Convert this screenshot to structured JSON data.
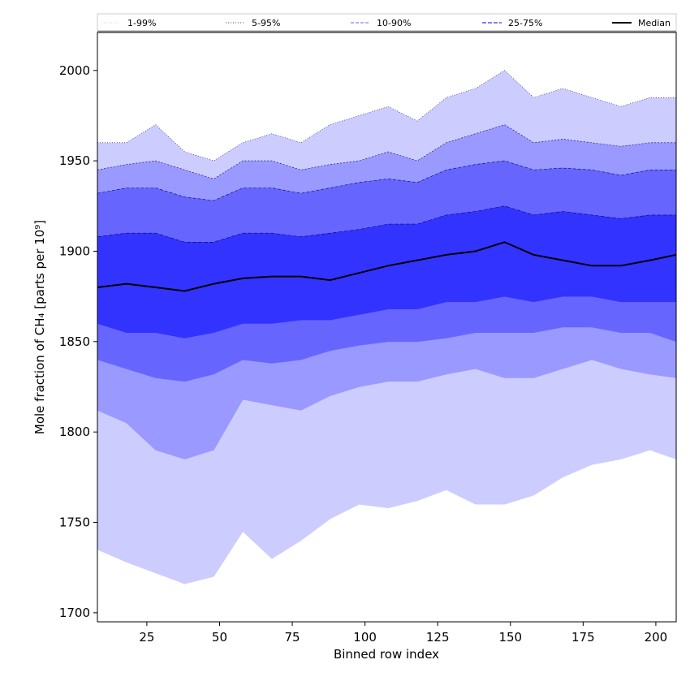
{
  "chart_data": {
    "type": "area",
    "xlabel": "Binned row index",
    "ylabel": "Mole fraction of CH₄ [parts per 10⁹]",
    "xlim": [
      8,
      207
    ],
    "ylim": [
      1695,
      2021
    ],
    "xticks": [
      25,
      50,
      75,
      100,
      125,
      150,
      175,
      200
    ],
    "yticks": [
      1700,
      1750,
      1800,
      1850,
      1900,
      1950,
      2000
    ],
    "legend_position": "top (above plot, horizontal)",
    "x": [
      8,
      18,
      28,
      38,
      48,
      58,
      68,
      78,
      88,
      98,
      108,
      118,
      128,
      138,
      148,
      158,
      168,
      178,
      188,
      198,
      207
    ],
    "series": [
      {
        "name": "1-99%",
        "color": "#ccccff",
        "lower": [
          1735,
          1728,
          1722,
          1716,
          1720,
          1745,
          1730,
          1740,
          1752,
          1760,
          1758,
          1762,
          1768,
          1760,
          1760,
          1765,
          1775,
          1782,
          1785,
          1790,
          1785
        ],
        "upper": [
          1960,
          1960,
          1970,
          1955,
          1950,
          1960,
          1965,
          1960,
          1970,
          1975,
          1980,
          1972,
          1985,
          1990,
          2000,
          1985,
          1990,
          1985,
          1980,
          1985,
          1985
        ]
      },
      {
        "name": "5-95%",
        "color": "#9999ff",
        "lower": [
          1812,
          1805,
          1790,
          1785,
          1790,
          1818,
          1815,
          1812,
          1820,
          1825,
          1828,
          1828,
          1832,
          1835,
          1830,
          1830,
          1835,
          1840,
          1835,
          1832,
          1830
        ],
        "upper": [
          1945,
          1948,
          1950,
          1945,
          1940,
          1950,
          1950,
          1945,
          1948,
          1950,
          1955,
          1950,
          1960,
          1965,
          1970,
          1960,
          1962,
          1960,
          1958,
          1960,
          1960
        ]
      },
      {
        "name": "10-90%",
        "color": "#6666ff",
        "lower": [
          1840,
          1835,
          1830,
          1828,
          1832,
          1840,
          1838,
          1840,
          1845,
          1848,
          1850,
          1850,
          1852,
          1855,
          1855,
          1855,
          1858,
          1858,
          1855,
          1855,
          1850
        ],
        "upper": [
          1932,
          1935,
          1935,
          1930,
          1928,
          1935,
          1935,
          1932,
          1935,
          1938,
          1940,
          1938,
          1945,
          1948,
          1950,
          1945,
          1946,
          1945,
          1942,
          1945,
          1945
        ]
      },
      {
        "name": "25-75%",
        "color": "#3333ff",
        "lower": [
          1860,
          1855,
          1855,
          1852,
          1855,
          1860,
          1860,
          1862,
          1862,
          1865,
          1868,
          1868,
          1872,
          1872,
          1875,
          1872,
          1875,
          1875,
          1872,
          1872,
          1872
        ],
        "upper": [
          1908,
          1910,
          1910,
          1905,
          1905,
          1910,
          1910,
          1908,
          1910,
          1912,
          1915,
          1915,
          1920,
          1922,
          1925,
          1920,
          1922,
          1920,
          1918,
          1920,
          1920
        ]
      },
      {
        "name": "Median",
        "color": "#000000",
        "values": [
          1880,
          1882,
          1880,
          1878,
          1882,
          1885,
          1886,
          1886,
          1884,
          1888,
          1892,
          1895,
          1898,
          1900,
          1905,
          1898,
          1895,
          1892,
          1892,
          1895,
          1898
        ]
      }
    ]
  }
}
